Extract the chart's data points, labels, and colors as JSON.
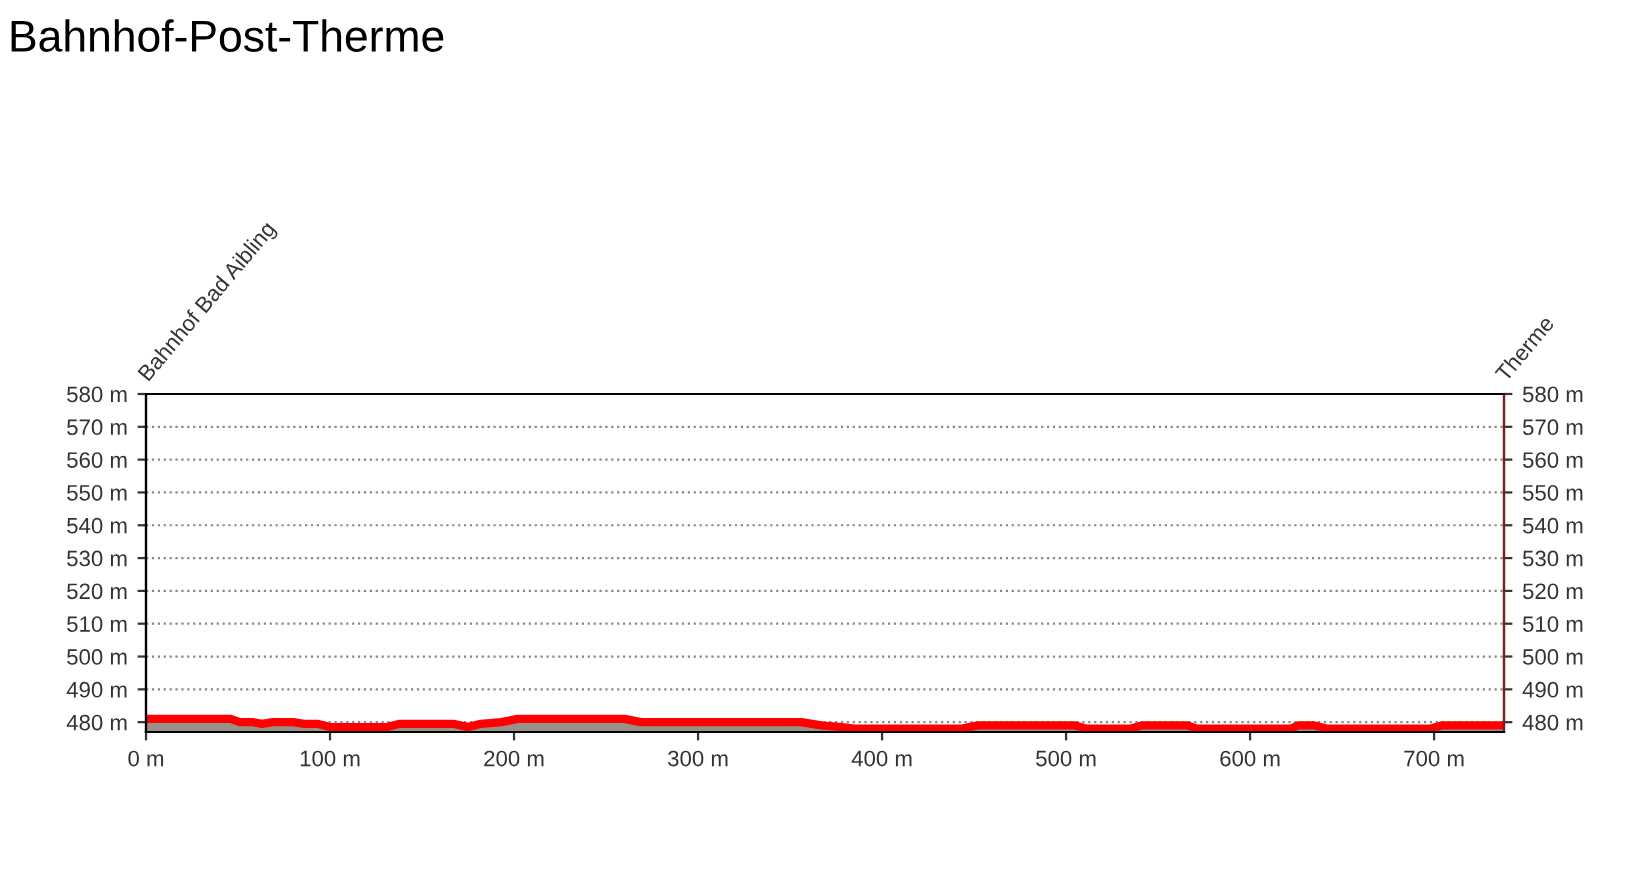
{
  "chart_data": {
    "type": "area",
    "title": "Bahnhof-Post-Therme",
    "x": [
      0,
      46,
      51,
      58,
      63,
      69,
      80,
      86,
      93,
      100,
      131,
      138,
      167,
      175,
      182,
      193,
      202,
      260,
      269,
      356,
      367,
      378,
      385,
      443,
      452,
      505,
      511,
      535,
      541,
      566,
      571,
      622,
      626,
      635,
      642,
      698,
      704,
      738
    ],
    "series": [
      {
        "color": "#ff0000",
        "values": [
          481,
          481,
          480,
          480,
          479.5,
          480,
          480,
          479.5,
          479.5,
          478.5,
          478.5,
          479.5,
          479.5,
          478.5,
          479.5,
          480,
          481,
          481,
          480,
          480,
          479,
          478.5,
          478,
          478,
          479,
          479,
          478,
          478,
          479,
          479,
          478,
          478,
          479,
          479,
          478,
          478,
          479,
          479
        ]
      }
    ],
    "xlim": [
      0,
      738
    ],
    "xticks": [
      {
        "value": 0,
        "label": "0 m"
      },
      {
        "value": 100,
        "label": "100 m"
      },
      {
        "value": 200,
        "label": "200 m"
      },
      {
        "value": 300,
        "label": "300 m"
      },
      {
        "value": 400,
        "label": "400 m"
      },
      {
        "value": 500,
        "label": "500 m"
      },
      {
        "value": 600,
        "label": "600 m"
      },
      {
        "value": 700,
        "label": "700 m"
      }
    ],
    "ylim": [
      477,
      580
    ],
    "yticks": [
      {
        "value": 480,
        "label": "480 m"
      },
      {
        "value": 490,
        "label": "490 m"
      },
      {
        "value": 500,
        "label": "500 m"
      },
      {
        "value": 510,
        "label": "510 m"
      },
      {
        "value": 520,
        "label": "520 m"
      },
      {
        "value": 530,
        "label": "530 m"
      },
      {
        "value": 540,
        "label": "540 m"
      },
      {
        "value": 550,
        "label": "550 m"
      },
      {
        "value": 560,
        "label": "560 m"
      },
      {
        "value": 570,
        "label": "570 m"
      },
      {
        "value": 580,
        "label": "580 m"
      }
    ],
    "y2lim": [
      477,
      580
    ],
    "y2ticks": [
      {
        "value": 480,
        "label": "480 m"
      },
      {
        "value": 490,
        "label": "490 m"
      },
      {
        "value": 500,
        "label": "500 m"
      },
      {
        "value": 510,
        "label": "510 m"
      },
      {
        "value": 520,
        "label": "520 m"
      },
      {
        "value": 530,
        "label": "530 m"
      },
      {
        "value": 540,
        "label": "540 m"
      },
      {
        "value": 550,
        "label": "550 m"
      },
      {
        "value": 560,
        "label": "560 m"
      },
      {
        "value": 570,
        "label": "570 m"
      },
      {
        "value": 580,
        "label": "580 m"
      }
    ],
    "grid": "y",
    "annotations": [
      "Bahnhof Bad Aibling",
      "Therme"
    ]
  }
}
